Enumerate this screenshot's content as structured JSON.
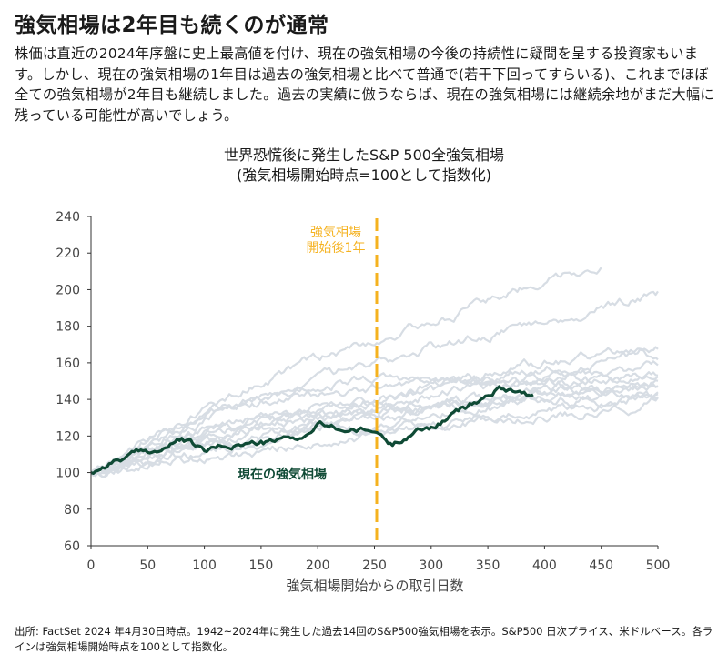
{
  "headline": "強気相場は2年目も続くのが通常",
  "intro": "株価は直近の2024年序盤に史上最高値を付け、現在の強気相場の今後の持続性に疑問を呈する投資家もいます。しかし、現在の強気相場の1年目は過去の強気相場と比べて普通で(若干下回ってすらいる)、これまでほぼ全ての強気相場が2年目も継続しました。過去の実績に倣うならば、現在の強気相場には継続余地がまだ大幅に残っている可能性が高いでしょう。",
  "chart_data": {
    "type": "line",
    "title": "世界恐慌後に発生したS&P 500全強気相場",
    "subtitle": "(強気相場開始時点=100として指数化)",
    "xlabel": "強気相場開始からの取引日数",
    "ylabel": "",
    "xlim": [
      0,
      500
    ],
    "ylim": [
      60,
      240
    ],
    "xticks": [
      0,
      50,
      100,
      150,
      200,
      250,
      300,
      350,
      400,
      450,
      500
    ],
    "yticks": [
      60,
      80,
      100,
      120,
      140,
      160,
      180,
      200,
      220,
      240
    ],
    "grid": false,
    "vline": {
      "x": 252,
      "label_line1": "強気相場",
      "label_line2": "開始後1年",
      "color": "#f5b21f"
    },
    "current_label": "現在の強気相場",
    "colors": {
      "current": "#0f4a35",
      "past": "#d7dde4"
    },
    "series": [
      {
        "name": "現在の強気相場",
        "highlight": true,
        "x": [
          0,
          20,
          40,
          60,
          80,
          100,
          130,
          160,
          190,
          200,
          220,
          252,
          265,
          280,
          300,
          320,
          340,
          360,
          375,
          390
        ],
        "y": [
          100,
          107,
          110,
          112,
          118,
          111,
          116,
          116,
          120,
          126,
          124,
          122,
          115,
          122,
          125,
          132,
          138,
          146,
          146,
          142
        ]
      },
      {
        "x": [
          0,
          50,
          100,
          150,
          200,
          250,
          300,
          350,
          400,
          450
        ],
        "y": [
          100,
          118,
          134,
          150,
          162,
          172,
          182,
          194,
          206,
          214
        ]
      },
      {
        "x": [
          0,
          50,
          100,
          150,
          200,
          250,
          300,
          350,
          400,
          450,
          500
        ],
        "y": [
          100,
          114,
          128,
          140,
          150,
          160,
          168,
          176,
          184,
          190,
          197
        ]
      },
      {
        "x": [
          0,
          50,
          100,
          150,
          200,
          250,
          300,
          350,
          400,
          450,
          500
        ],
        "y": [
          100,
          112,
          124,
          130,
          136,
          140,
          148,
          154,
          160,
          164,
          170
        ]
      },
      {
        "x": [
          0,
          50,
          100,
          150,
          200,
          250,
          300,
          350,
          400,
          450,
          500
        ],
        "y": [
          100,
          116,
          132,
          138,
          142,
          146,
          150,
          152,
          156,
          162,
          164
        ]
      },
      {
        "x": [
          0,
          50,
          100,
          150,
          200,
          250,
          300,
          350,
          400,
          450,
          500
        ],
        "y": [
          100,
          110,
          120,
          128,
          134,
          140,
          144,
          146,
          150,
          154,
          158
        ]
      },
      {
        "x": [
          0,
          50,
          100,
          150,
          200,
          250,
          300,
          350,
          400,
          450,
          500
        ],
        "y": [
          100,
          120,
          135,
          140,
          148,
          152,
          150,
          148,
          152,
          150,
          155
        ]
      },
      {
        "x": [
          0,
          50,
          100,
          150,
          200,
          250,
          300,
          350,
          400,
          450,
          500
        ],
        "y": [
          100,
          108,
          118,
          124,
          130,
          134,
          138,
          140,
          144,
          146,
          150
        ]
      },
      {
        "x": [
          0,
          50,
          100,
          150,
          200,
          250,
          300,
          350,
          400,
          450,
          500
        ],
        "y": [
          100,
          112,
          120,
          126,
          130,
          132,
          136,
          140,
          142,
          144,
          146
        ]
      },
      {
        "x": [
          0,
          50,
          100,
          150,
          200,
          250,
          300,
          350,
          400,
          450,
          500
        ],
        "y": [
          100,
          104,
          112,
          118,
          126,
          132,
          136,
          140,
          142,
          140,
          143
        ]
      },
      {
        "x": [
          0,
          50,
          100,
          150,
          200,
          250,
          300,
          350,
          400,
          450,
          500
        ],
        "y": [
          100,
          114,
          122,
          128,
          132,
          136,
          142,
          148,
          150,
          146,
          148
        ]
      },
      {
        "x": [
          0,
          50,
          100,
          150,
          200,
          250,
          300,
          350,
          400,
          450,
          500
        ],
        "y": [
          100,
          110,
          116,
          120,
          126,
          130,
          134,
          136,
          140,
          138,
          140
        ]
      },
      {
        "x": [
          0,
          50,
          100,
          150,
          200,
          250,
          300,
          350,
          400,
          450,
          500
        ],
        "y": [
          100,
          106,
          114,
          122,
          126,
          124,
          132,
          138,
          144,
          148,
          152
        ]
      },
      {
        "x": [
          0,
          50,
          100,
          150,
          200,
          250,
          300,
          350,
          400,
          450,
          500
        ],
        "y": [
          100,
          112,
          118,
          116,
          122,
          124,
          128,
          132,
          134,
          138,
          141
        ]
      },
      {
        "x": [
          0,
          50,
          100,
          150,
          200,
          250,
          300,
          350,
          400,
          450,
          500
        ],
        "y": [
          100,
          104,
          108,
          112,
          116,
          120,
          124,
          128,
          130,
          134,
          138
        ]
      }
    ]
  },
  "footnote": "出所: FactSet 2024 年4月30日時点。1942~2024年に発生した過去14回のS&P500強気相場を表示。S&P500 日次プライス、米ドルベース。各ラインは強気相場開始時点を100として指数化。"
}
